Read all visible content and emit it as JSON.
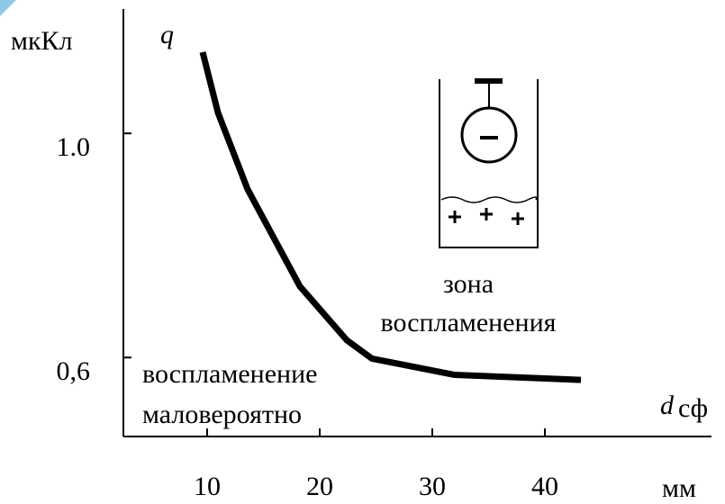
{
  "chart_data": {
    "type": "line",
    "ylabel": "q",
    "y_unit": "мкКл",
    "xlabel": "d",
    "xlabel_sub": "сф",
    "x_unit": "мм",
    "x": [
      9.6,
      10.96,
      13.6,
      18.24,
      22.4,
      24.64,
      32.0,
      43.2
    ],
    "series": [
      {
        "color": "#000000",
        "values": [
          1.145,
          1.037,
          0.9,
          0.727,
          0.631,
          0.598,
          0.569,
          0.56
        ]
      }
    ],
    "xlim": [
      2.56,
      54.8
    ],
    "xticks": [
      10,
      20,
      30,
      40
    ],
    "ylim": [
      0.459,
      1.222
    ],
    "yticks": [
      {
        "value": 1.0,
        "label": "1.0"
      },
      {
        "value": 0.6,
        "label": "0,6"
      }
    ],
    "annotations": [
      "зона",
      "воспламенения",
      "воспламенение",
      "маловероятно"
    ]
  }
}
